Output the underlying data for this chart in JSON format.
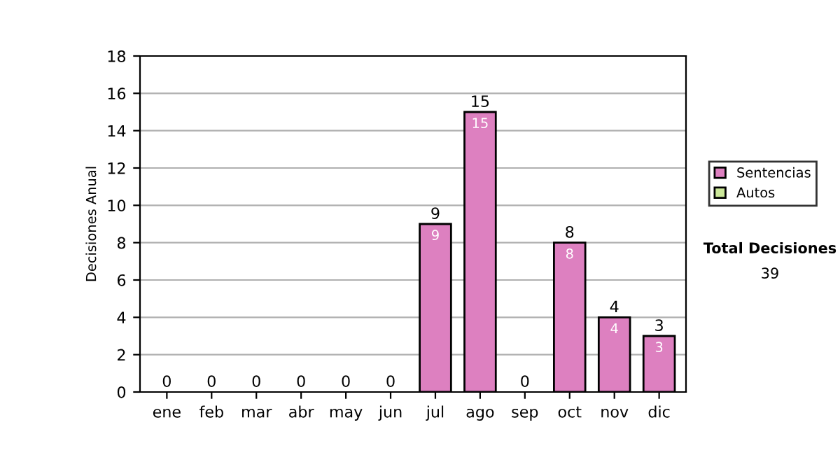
{
  "chart_data": {
    "type": "bar",
    "stacked": true,
    "ylabel": "Decisiones Anual",
    "categories": [
      "ene",
      "feb",
      "mar",
      "abr",
      "may",
      "jun",
      "jul",
      "ago",
      "sep",
      "oct",
      "nov",
      "dic"
    ],
    "series": [
      {
        "name": "Sentencias",
        "color": "#dd80c0",
        "values": [
          0,
          0,
          0,
          0,
          0,
          0,
          9,
          15,
          0,
          8,
          4,
          3
        ],
        "value_labels": [
          null,
          null,
          null,
          null,
          null,
          null,
          "9",
          "15",
          null,
          "8",
          "4",
          "3"
        ]
      },
      {
        "name": "Autos",
        "color": "#cce89a",
        "values": [
          0,
          0,
          0,
          0,
          0,
          0,
          0,
          0,
          0,
          0,
          0,
          0
        ]
      }
    ],
    "totals": [
      "0",
      "0",
      "0",
      "0",
      "0",
      "0",
      "9",
      "15",
      "0",
      "8",
      "4",
      "3"
    ],
    "ylim": [
      0,
      18
    ],
    "yticks": [
      0,
      2,
      4,
      6,
      8,
      10,
      12,
      14,
      16,
      18
    ],
    "grid": "y",
    "legend": "right",
    "annotations": [
      "Total Decisiones",
      "39"
    ]
  }
}
